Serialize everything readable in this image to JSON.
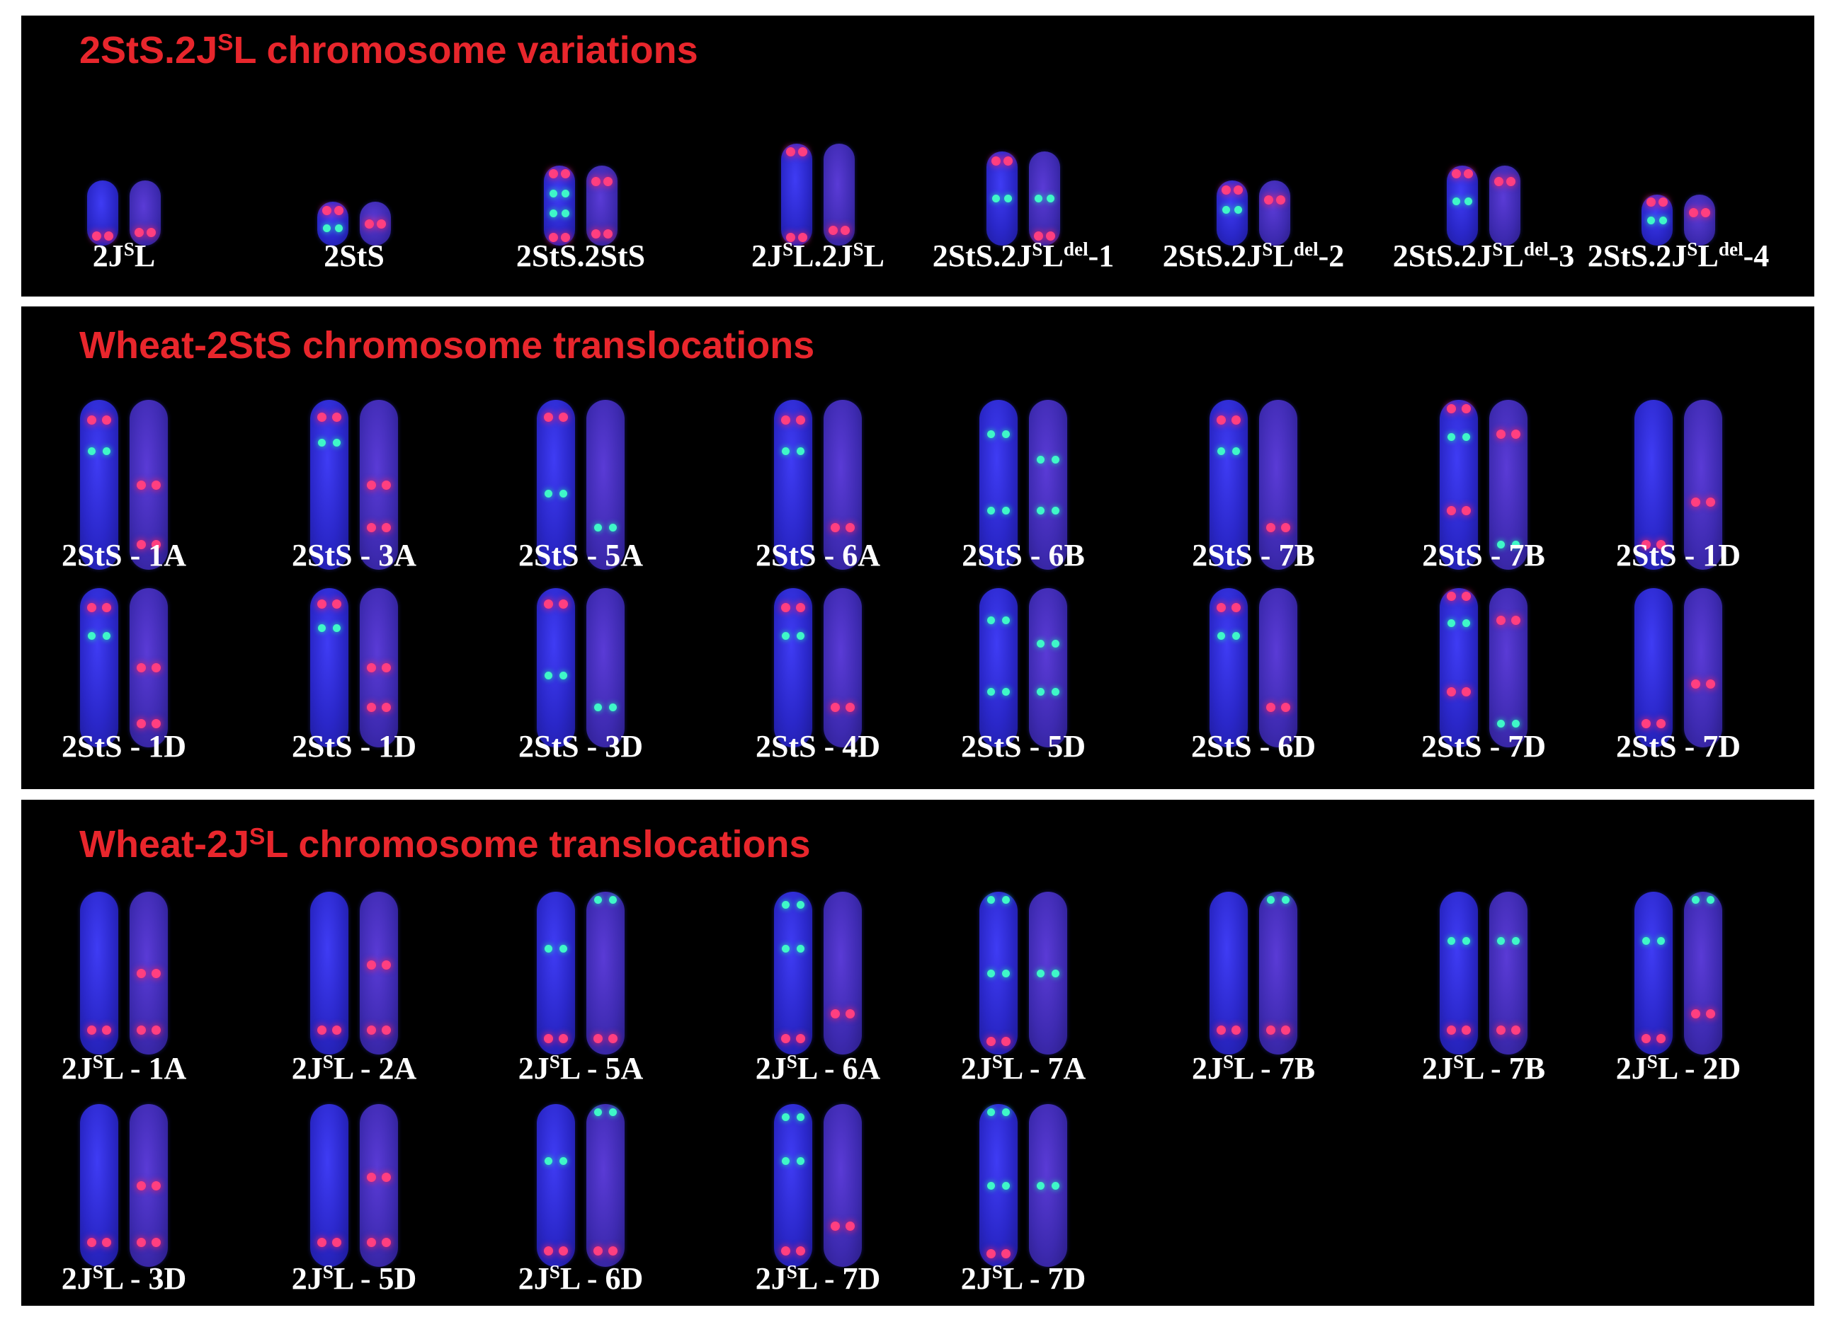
{
  "panels": [
    {
      "title_prefix": "2StS.2J",
      "title_sup": "S",
      "title_suffix": "L  chromosome variations",
      "rows": [
        [
          {
            "pre": "2J",
            "sup": "S",
            "post": "L"
          },
          {
            "pre": "2StS",
            "sup": "",
            "post": ""
          },
          {
            "pre": "2StS.2StS",
            "sup": "",
            "post": ""
          },
          {
            "pre": "2J",
            "sup": "S",
            "post": "L.2J",
            "sup2": "S",
            "post2": "L"
          },
          {
            "pre": "2StS.2J",
            "sup": "S",
            "post": "L",
            "sup2": "del",
            "post2": "-1"
          },
          {
            "pre": "2StS.2J",
            "sup": "S",
            "post": "L",
            "sup2": "del",
            "post2": "-2"
          },
          {
            "pre": "2StS.2J",
            "sup": "S",
            "post": "L",
            "sup2": "del",
            "post2": "-3"
          },
          {
            "pre": "2StS.2J",
            "sup": "S",
            "post": "L",
            "sup2": "del",
            "post2": "-4"
          }
        ]
      ]
    },
    {
      "title_prefix": "Wheat-2StS chromosome translocations",
      "title_sup": "",
      "title_suffix": "",
      "rows": [
        [
          {
            "pre": "2StS - 1A",
            "sup": "",
            "post": ""
          },
          {
            "pre": "2StS - 3A",
            "sup": "",
            "post": ""
          },
          {
            "pre": "2StS - 5A",
            "sup": "",
            "post": ""
          },
          {
            "pre": "2StS - 6A",
            "sup": "",
            "post": ""
          },
          {
            "pre": "2StS - 6B",
            "sup": "",
            "post": ""
          },
          {
            "pre": "2StS - 7B",
            "sup": "",
            "post": ""
          },
          {
            "pre": "2StS - 7B",
            "sup": "",
            "post": ""
          },
          {
            "pre": "2StS - 1D",
            "sup": "",
            "post": ""
          }
        ],
        [
          {
            "pre": "2StS - 1D",
            "sup": "",
            "post": ""
          },
          {
            "pre": "2StS - 1D",
            "sup": "",
            "post": ""
          },
          {
            "pre": "2StS - 3D",
            "sup": "",
            "post": ""
          },
          {
            "pre": "2StS - 4D",
            "sup": "",
            "post": ""
          },
          {
            "pre": "2StS - 5D",
            "sup": "",
            "post": ""
          },
          {
            "pre": "2StS - 6D",
            "sup": "",
            "post": ""
          },
          {
            "pre": "2StS - 7D",
            "sup": "",
            "post": ""
          },
          {
            "pre": "2StS - 7D",
            "sup": "",
            "post": ""
          }
        ]
      ]
    },
    {
      "title_prefix": "Wheat-2J",
      "title_sup": "S",
      "title_suffix": "L chromosome translocations",
      "rows": [
        [
          {
            "pre": "2J",
            "sup": "S",
            "post": "L - 1A"
          },
          {
            "pre": "2J",
            "sup": "S",
            "post": "L - 2A"
          },
          {
            "pre": "2J",
            "sup": "S",
            "post": "L - 5A"
          },
          {
            "pre": "2J",
            "sup": "S",
            "post": "L - 6A"
          },
          {
            "pre": "2J",
            "sup": "S",
            "post": "L - 7A"
          },
          {
            "pre": "2J",
            "sup": "S",
            "post": "L - 7B"
          },
          {
            "pre": "2J",
            "sup": "S",
            "post": "L - 7B"
          },
          {
            "pre": "2J",
            "sup": "S",
            "post": "L - 2D"
          }
        ],
        [
          {
            "pre": "2J",
            "sup": "S",
            "post": "L - 3D"
          },
          {
            "pre": "2J",
            "sup": "S",
            "post": "L - 5D"
          },
          {
            "pre": "2J",
            "sup": "S",
            "post": "L - 6D"
          },
          {
            "pre": "2J",
            "sup": "S",
            "post": "L - 7D"
          },
          {
            "pre": "2J",
            "sup": "S",
            "post": "L - 7D"
          }
        ]
      ]
    }
  ],
  "colors": {
    "background": "#000000",
    "frame": "#ffffff",
    "title": "#e8262c",
    "label": "#ffffff",
    "chromosome": "#2a27c9",
    "signal_red": "#ff3f80",
    "signal_green": "#3ff7c8"
  }
}
